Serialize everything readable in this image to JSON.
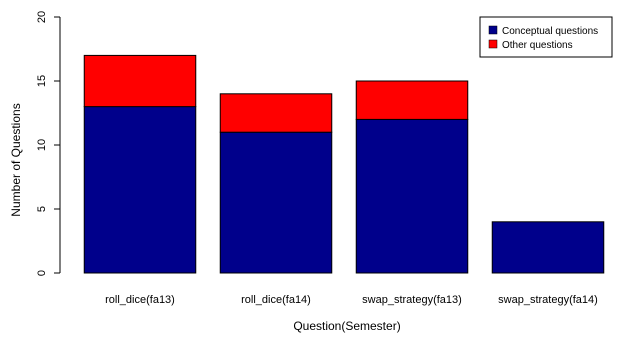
{
  "chart_data": {
    "type": "bar",
    "stacked": true,
    "categories": [
      "roll_dice(fa13)",
      "roll_dice(fa14)",
      "swap_strategy(fa13)",
      "swap_strategy(fa14)"
    ],
    "series": [
      {
        "name": "Conceptual questions",
        "values": [
          13,
          11,
          12,
          4
        ],
        "color": "#00008b"
      },
      {
        "name": "Other questions",
        "values": [
          4,
          3,
          3,
          0
        ],
        "color": "#ff0000"
      }
    ],
    "xlabel": "Question(Semester)",
    "ylabel": "Number of Questions",
    "ylim": [
      0,
      20
    ],
    "yticks": [
      0,
      5,
      10,
      15,
      20
    ],
    "grid": false,
    "legend": "top-right"
  }
}
